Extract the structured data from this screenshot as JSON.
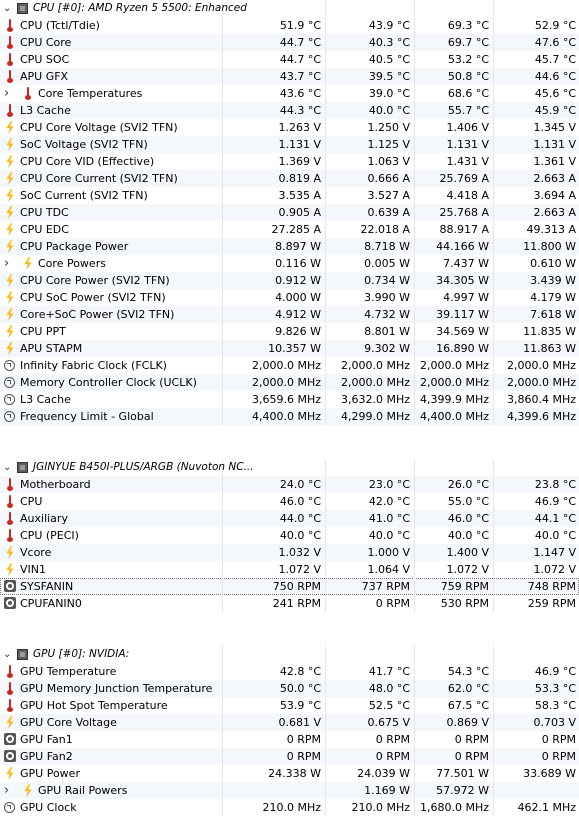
{
  "rows": [
    {
      "type": "group",
      "label": "CPU [#0]: AMD Ryzen 5 5500: Enhanced",
      "v": [
        "",
        "",
        "",
        ""
      ]
    },
    {
      "type": "item",
      "icon": "temp",
      "label": "CPU (Tctl/Tdie)",
      "v": [
        "51.9 °C",
        "43.9 °C",
        "69.3 °C",
        "52.9 °C"
      ]
    },
    {
      "type": "item",
      "icon": "temp",
      "label": "CPU Core",
      "v": [
        "44.7 °C",
        "40.3 °C",
        "69.7 °C",
        "47.6 °C"
      ]
    },
    {
      "type": "item",
      "icon": "temp",
      "label": "CPU SOC",
      "v": [
        "44.7 °C",
        "40.5 °C",
        "53.2 °C",
        "45.7 °C"
      ]
    },
    {
      "type": "item",
      "icon": "temp",
      "label": "APU GFX",
      "v": [
        "43.7 °C",
        "39.5 °C",
        "50.8 °C",
        "44.6 °C"
      ]
    },
    {
      "type": "sub",
      "icon": "temp",
      "label": "Core Temperatures",
      "v": [
        "43.6 °C",
        "39.0 °C",
        "68.6 °C",
        "45.6 °C"
      ]
    },
    {
      "type": "item",
      "icon": "temp",
      "label": "L3 Cache",
      "v": [
        "44.3 °C",
        "40.0 °C",
        "55.7 °C",
        "45.9 °C"
      ]
    },
    {
      "type": "item",
      "icon": "bolt",
      "label": "CPU Core Voltage (SVI2 TFN)",
      "v": [
        "1.263 V",
        "1.250 V",
        "1.406 V",
        "1.345 V"
      ]
    },
    {
      "type": "item",
      "icon": "bolt",
      "label": "SoC Voltage (SVI2 TFN)",
      "v": [
        "1.131 V",
        "1.125 V",
        "1.131 V",
        "1.131 V"
      ]
    },
    {
      "type": "item",
      "icon": "bolt",
      "label": "CPU Core VID (Effective)",
      "v": [
        "1.369 V",
        "1.063 V",
        "1.431 V",
        "1.361 V"
      ]
    },
    {
      "type": "item",
      "icon": "bolt",
      "label": "CPU Core Current (SVI2 TFN)",
      "v": [
        "0.819 A",
        "0.666 A",
        "25.769 A",
        "2.663 A"
      ]
    },
    {
      "type": "item",
      "icon": "bolt",
      "label": "SoC Current (SVI2 TFN)",
      "v": [
        "3.535 A",
        "3.527 A",
        "4.418 A",
        "3.694 A"
      ]
    },
    {
      "type": "item",
      "icon": "bolt",
      "label": "CPU TDC",
      "v": [
        "0.905 A",
        "0.639 A",
        "25.768 A",
        "2.663 A"
      ]
    },
    {
      "type": "item",
      "icon": "bolt",
      "label": "CPU EDC",
      "v": [
        "27.285 A",
        "22.018 A",
        "88.917 A",
        "49.313 A"
      ]
    },
    {
      "type": "item",
      "icon": "bolt",
      "label": "CPU Package Power",
      "v": [
        "8.897 W",
        "8.718 W",
        "44.166 W",
        "11.800 W"
      ]
    },
    {
      "type": "sub",
      "icon": "bolt",
      "label": "Core Powers",
      "v": [
        "0.116 W",
        "0.005 W",
        "7.437 W",
        "0.610 W"
      ]
    },
    {
      "type": "item",
      "icon": "bolt",
      "label": "CPU Core Power (SVI2 TFN)",
      "v": [
        "0.912 W",
        "0.734 W",
        "34.305 W",
        "3.439 W"
      ]
    },
    {
      "type": "item",
      "icon": "bolt",
      "label": "CPU SoC Power (SVI2 TFN)",
      "v": [
        "4.000 W",
        "3.990 W",
        "4.997 W",
        "4.179 W"
      ]
    },
    {
      "type": "item",
      "icon": "bolt",
      "label": "Core+SoC Power (SVI2 TFN)",
      "v": [
        "4.912 W",
        "4.732 W",
        "39.117 W",
        "7.618 W"
      ]
    },
    {
      "type": "item",
      "icon": "bolt",
      "label": "CPU PPT",
      "v": [
        "9.826 W",
        "8.801 W",
        "34.569 W",
        "11.835 W"
      ]
    },
    {
      "type": "item",
      "icon": "bolt",
      "label": "APU STAPM",
      "v": [
        "10.357 W",
        "9.302 W",
        "16.890 W",
        "11.863 W"
      ]
    },
    {
      "type": "item",
      "icon": "clock",
      "label": "Infinity Fabric Clock (FCLK)",
      "v": [
        "2,000.0 MHz",
        "2,000.0 MHz",
        "2,000.0 MHz",
        "2,000.0 MHz"
      ]
    },
    {
      "type": "item",
      "icon": "clock",
      "label": "Memory Controller Clock (UCLK)",
      "v": [
        "2,000.0 MHz",
        "2,000.0 MHz",
        "2,000.0 MHz",
        "2,000.0 MHz"
      ]
    },
    {
      "type": "item",
      "icon": "clock",
      "label": "L3 Cache",
      "v": [
        "3,659.6 MHz",
        "3,632.0 MHz",
        "4,399.9 MHz",
        "3,860.4 MHz"
      ]
    },
    {
      "type": "item",
      "icon": "clock",
      "label": "Frequency Limit - Global",
      "v": [
        "4,400.0 MHz",
        "4,299.0 MHz",
        "4,400.0 MHz",
        "4,399.6 MHz"
      ]
    },
    {
      "type": "empty"
    },
    {
      "type": "empty"
    },
    {
      "type": "group",
      "label": "JGINYUE B450I-PLUS/ARGB (Nuvoton NC...",
      "v": [
        "",
        "",
        "",
        ""
      ]
    },
    {
      "type": "item",
      "icon": "temp",
      "label": "Motherboard",
      "v": [
        "24.0 °C",
        "23.0 °C",
        "26.0 °C",
        "23.8 °C"
      ]
    },
    {
      "type": "item",
      "icon": "temp",
      "label": "CPU",
      "v": [
        "46.0 °C",
        "42.0 °C",
        "55.0 °C",
        "46.9 °C"
      ]
    },
    {
      "type": "item",
      "icon": "temp",
      "label": "Auxiliary",
      "v": [
        "44.0 °C",
        "41.0 °C",
        "46.0 °C",
        "44.1 °C"
      ]
    },
    {
      "type": "item",
      "icon": "temp",
      "label": "CPU (PECI)",
      "v": [
        "40.0 °C",
        "40.0 °C",
        "40.0 °C",
        "40.0 °C"
      ]
    },
    {
      "type": "item",
      "icon": "bolt",
      "label": "Vcore",
      "v": [
        "1.032 V",
        "1.000 V",
        "1.400 V",
        "1.147 V"
      ]
    },
    {
      "type": "item",
      "icon": "bolt",
      "label": "VIN1",
      "v": [
        "1.072 V",
        "1.064 V",
        "1.072 V",
        "1.072 V"
      ]
    },
    {
      "type": "item",
      "icon": "fan",
      "label": "SYSFANIN",
      "v": [
        "750 RPM",
        "737 RPM",
        "759 RPM",
        "748 RPM"
      ],
      "highlight": true
    },
    {
      "type": "item",
      "icon": "fan",
      "label": "CPUFANIN0",
      "v": [
        "241 RPM",
        "0 RPM",
        "530 RPM",
        "259 RPM"
      ]
    },
    {
      "type": "empty"
    },
    {
      "type": "empty"
    },
    {
      "type": "group",
      "label": "GPU [#0]: NVIDIA:",
      "v": [
        "",
        "",
        "",
        ""
      ]
    },
    {
      "type": "item",
      "icon": "temp",
      "label": "GPU Temperature",
      "v": [
        "42.8 °C",
        "41.7 °C",
        "54.3 °C",
        "46.9 °C"
      ]
    },
    {
      "type": "item",
      "icon": "temp",
      "label": "GPU Memory Junction Temperature",
      "v": [
        "50.0 °C",
        "48.0 °C",
        "62.0 °C",
        "53.3 °C"
      ]
    },
    {
      "type": "item",
      "icon": "temp",
      "label": "GPU Hot Spot Temperature",
      "v": [
        "53.9 °C",
        "52.5 °C",
        "67.5 °C",
        "58.3 °C"
      ]
    },
    {
      "type": "item",
      "icon": "bolt",
      "label": "GPU Core Voltage",
      "v": [
        "0.681 V",
        "0.675 V",
        "0.869 V",
        "0.703 V"
      ]
    },
    {
      "type": "item",
      "icon": "fan",
      "label": "GPU Fan1",
      "v": [
        "0 RPM",
        "0 RPM",
        "0 RPM",
        "0 RPM"
      ]
    },
    {
      "type": "item",
      "icon": "fan",
      "label": "GPU Fan2",
      "v": [
        "0 RPM",
        "0 RPM",
        "0 RPM",
        "0 RPM"
      ]
    },
    {
      "type": "item",
      "icon": "bolt",
      "label": "GPU Power",
      "v": [
        "24.338 W",
        "24.039 W",
        "77.501 W",
        "33.689 W"
      ]
    },
    {
      "type": "sub",
      "icon": "bolt",
      "label": "GPU Rail Powers",
      "v": [
        "",
        "1.169 W",
        "57.972 W",
        ""
      ]
    },
    {
      "type": "item",
      "icon": "clock",
      "label": "GPU Clock",
      "v": [
        "210.0 MHz",
        "210.0 MHz",
        "1,680.0 MHz",
        "462.1 MHz"
      ]
    }
  ]
}
